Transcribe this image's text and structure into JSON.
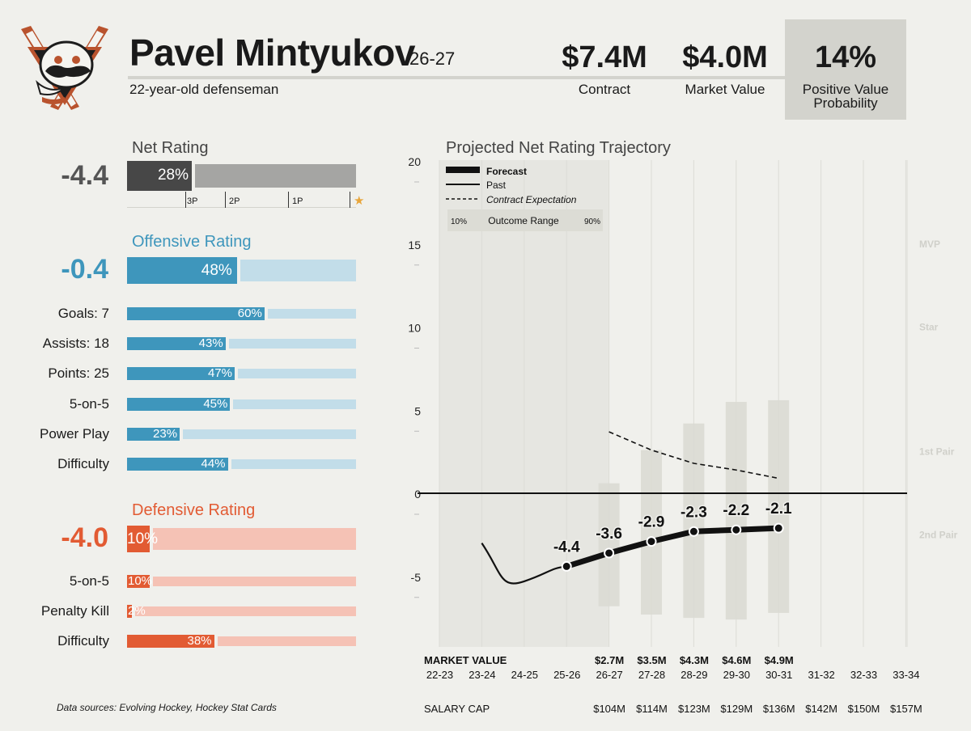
{
  "header": {
    "player_name": "Pavel Mintyukov",
    "season": "26-27",
    "subtitle": "22-year-old defenseman",
    "contract_value": "$7.4M",
    "contract_label": "Contract",
    "market_value": "$4.0M",
    "market_label": "Market Value",
    "pvp_value": "14%",
    "pvp_label_1": "Positive Value",
    "pvp_label_2": "Probability",
    "logo_icon": "team-logo-icon"
  },
  "net_rating": {
    "title": "Net Rating",
    "value": "-4.4",
    "percentile_label": "28%",
    "percentile": 0.28,
    "tiers": [
      "3P",
      "2P",
      "1P"
    ],
    "star_icon": "star-icon"
  },
  "offense": {
    "title": "Offensive Rating",
    "value": "-0.4",
    "percentile_label": "48%",
    "percentile": 0.48,
    "color": "#3e96bc",
    "light_color": "#c2dde9",
    "rows": [
      {
        "label": "Goals: 7",
        "pct_label": "60%",
        "pct": 0.6
      },
      {
        "label": "Assists: 18",
        "pct_label": "43%",
        "pct": 0.43
      },
      {
        "label": "Points: 25",
        "pct_label": "47%",
        "pct": 0.47
      },
      {
        "label": "5-on-5",
        "pct_label": "45%",
        "pct": 0.45
      },
      {
        "label": "Power Play",
        "pct_label": "23%",
        "pct": 0.23
      },
      {
        "label": "Difficulty",
        "pct_label": "44%",
        "pct": 0.44
      }
    ]
  },
  "defense": {
    "title": "Defensive Rating",
    "value": "-4.0",
    "percentile_label": "10%",
    "percentile": 0.1,
    "color": "#e25b33",
    "light_color": "#f5c2b5",
    "rows": [
      {
        "label": "5-on-5",
        "pct_label": "10%",
        "pct": 0.1
      },
      {
        "label": "Penalty Kill",
        "pct_label": "2%",
        "pct": 0.02
      },
      {
        "label": "Difficulty",
        "pct_label": "38%",
        "pct": 0.38
      }
    ]
  },
  "sources": "Data sources: Evolving Hockey, Hockey Stat Cards",
  "chart_data": {
    "type": "line",
    "title": "Projected Net Rating Trajectory",
    "ylim": [
      -9.5,
      20
    ],
    "yticks": [
      -5,
      0,
      5,
      10,
      15,
      20
    ],
    "grid": true,
    "seasons": [
      "22-23",
      "23-24",
      "24-25",
      "25-26",
      "26-27",
      "27-28",
      "28-29",
      "29-30",
      "30-31",
      "31-32",
      "32-33",
      "33-34"
    ],
    "tier_lines": [
      {
        "label": "MVP",
        "y": 15
      },
      {
        "label": "Star",
        "y": 10
      },
      {
        "label": "1st Pair",
        "y": 2.5
      },
      {
        "label": "2nd Pair",
        "y": -2.5
      }
    ],
    "past": {
      "name": "Past",
      "x": [
        1,
        2,
        3
      ],
      "y": [
        -3.0,
        -5.3,
        -4.4
      ]
    },
    "forecast": {
      "name": "Forecast",
      "x": [
        3,
        4,
        5,
        6,
        7,
        8
      ],
      "y": [
        -4.4,
        -3.6,
        -2.9,
        -2.3,
        -2.2,
        -2.1
      ],
      "labels": [
        "-4.4",
        "-3.6",
        "-2.9",
        "-2.3",
        "-2.2",
        "-2.1"
      ]
    },
    "contract_expectation": {
      "name": "Contract Expectation",
      "x": [
        4,
        5,
        6,
        7,
        8
      ],
      "y": [
        3.7,
        2.6,
        1.8,
        1.4,
        0.9
      ]
    },
    "outcome_range": {
      "name": "Outcome Range",
      "low_label": "10%",
      "high_label": "90%",
      "x": [
        4,
        5,
        6,
        7,
        8
      ],
      "low": [
        -6.8,
        -7.3,
        -7.5,
        -7.6,
        -7.2
      ],
      "high": [
        0.6,
        2.6,
        4.2,
        5.5,
        5.6
      ]
    },
    "legend": {
      "forecast": "Forecast",
      "past": "Past",
      "contract": "Contract Expectation",
      "range": "Outcome Range",
      "placement": "top-left"
    },
    "market_value_label": "MARKET VALUE",
    "market_values": [
      "",
      "",
      "",
      "",
      "$2.7M",
      "$3.5M",
      "$4.3M",
      "$4.6M",
      "$4.9M",
      "",
      "",
      ""
    ],
    "salary_cap_label": "SALARY CAP",
    "salary_caps": [
      "",
      "",
      "",
      "",
      "$104M",
      "$114M",
      "$123M",
      "$129M",
      "$136M",
      "$142M",
      "$150M",
      "$157M"
    ],
    "shaded_past_region": [
      0,
      4
    ]
  }
}
